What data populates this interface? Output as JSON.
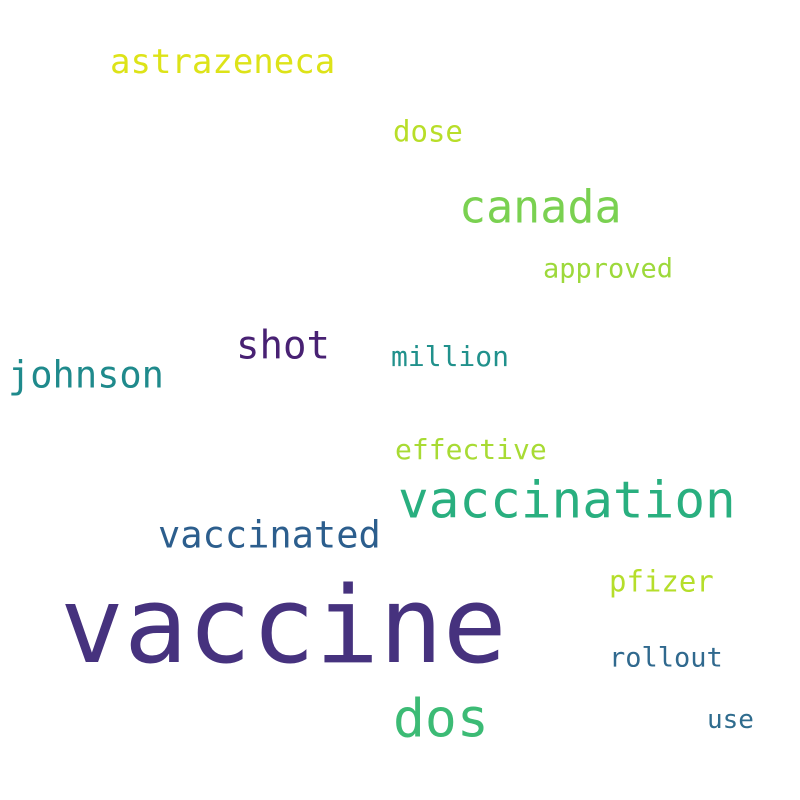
{
  "words": [
    {
      "text": "astrazeneca",
      "color": "#dde318"
    },
    {
      "text": "dose",
      "color": "#b8de29"
    },
    {
      "text": "canada",
      "color": "#7ad151"
    },
    {
      "text": "approved",
      "color": "#9dd93b"
    },
    {
      "text": "shot",
      "color": "#482173"
    },
    {
      "text": "million",
      "color": "#21918c"
    },
    {
      "text": "johnson",
      "color": "#1f8a8c"
    },
    {
      "text": "effective",
      "color": "#a8db34"
    },
    {
      "text": "vaccination",
      "color": "#29af7f"
    },
    {
      "text": "vaccinated",
      "color": "#2c5e8d"
    },
    {
      "text": "pfizer",
      "color": "#b5de2b"
    },
    {
      "text": "vaccine",
      "color": "#46327e"
    },
    {
      "text": "rollout",
      "color": "#30698e"
    },
    {
      "text": "dos",
      "color": "#3cbb75"
    },
    {
      "text": "use",
      "color": "#2f6c8e"
    }
  ]
}
